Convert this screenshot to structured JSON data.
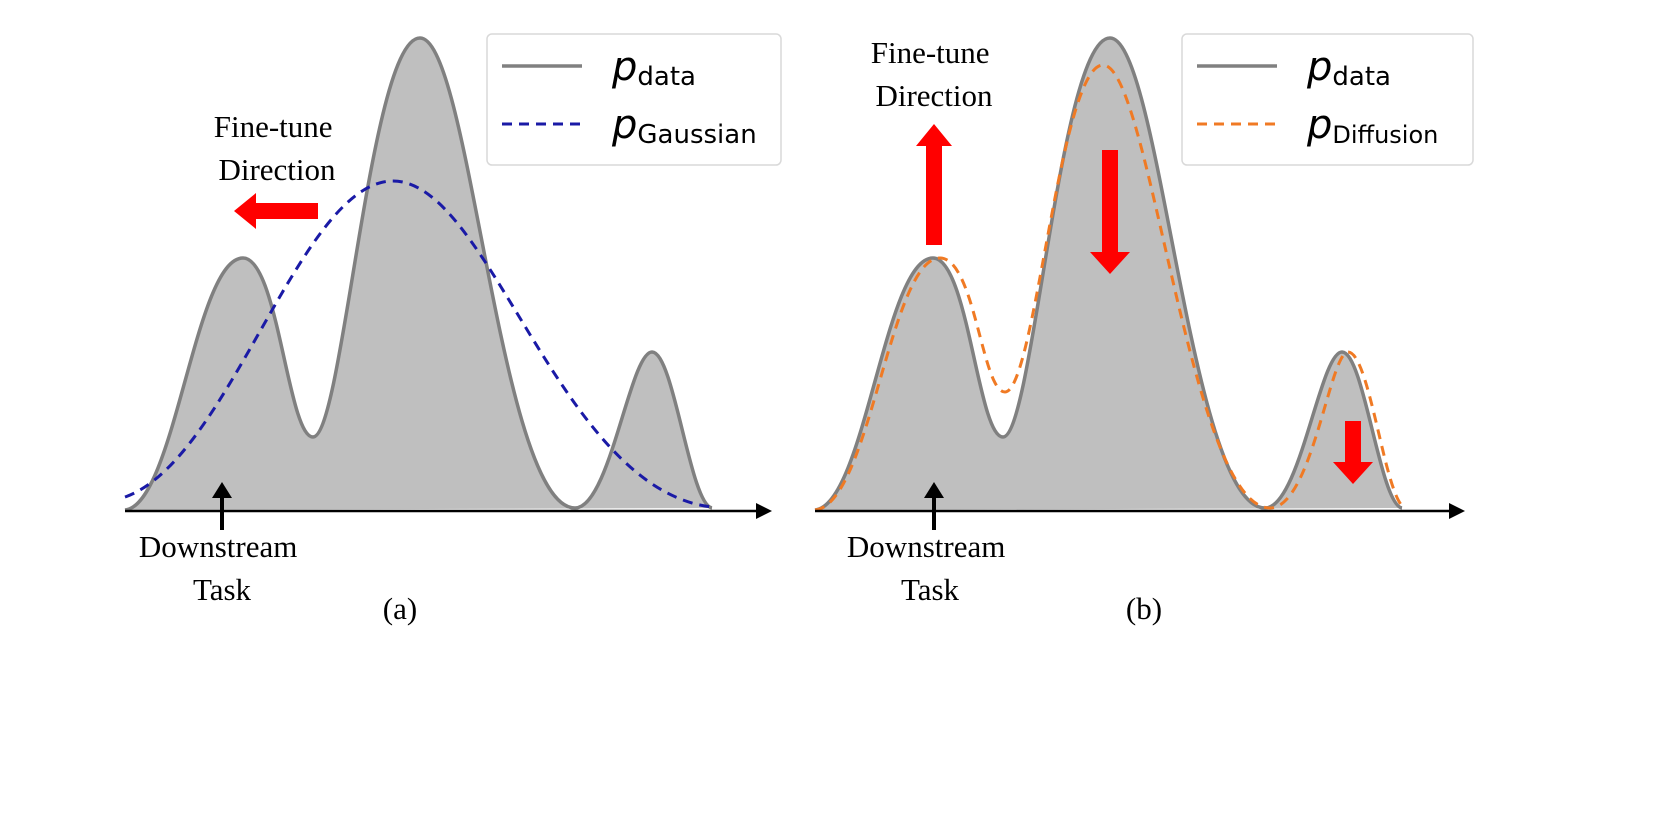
{
  "panels": [
    {
      "id": "a",
      "caption": "(a)",
      "finetune_label": [
        "Fine-tune",
        "Direction"
      ],
      "downstream_label": [
        "Downstream",
        "Task"
      ],
      "legend": [
        {
          "symbol": "p",
          "subscript": "data",
          "style": "solid",
          "color": "#808080"
        },
        {
          "symbol": "p",
          "subscript": "Gaussian",
          "style": "dashed",
          "color": "#1a1aa6"
        }
      ]
    },
    {
      "id": "b",
      "caption": "(b)",
      "finetune_label": [
        "Fine-tune",
        "Direction"
      ],
      "downstream_label": [
        "Downstream",
        "Task"
      ],
      "legend": [
        {
          "symbol": "p",
          "subscript": "data",
          "style": "solid",
          "color": "#808080"
        },
        {
          "symbol": "p",
          "subscript": "Diffusion",
          "style": "dashed",
          "color": "#f07a24"
        }
      ]
    }
  ],
  "colors": {
    "fill": "#bfbfbf",
    "data_line": "#808080",
    "gaussian": "#1a1aa6",
    "diffusion": "#f07a24",
    "arrow": "#ff0000",
    "axis": "#000000"
  }
}
